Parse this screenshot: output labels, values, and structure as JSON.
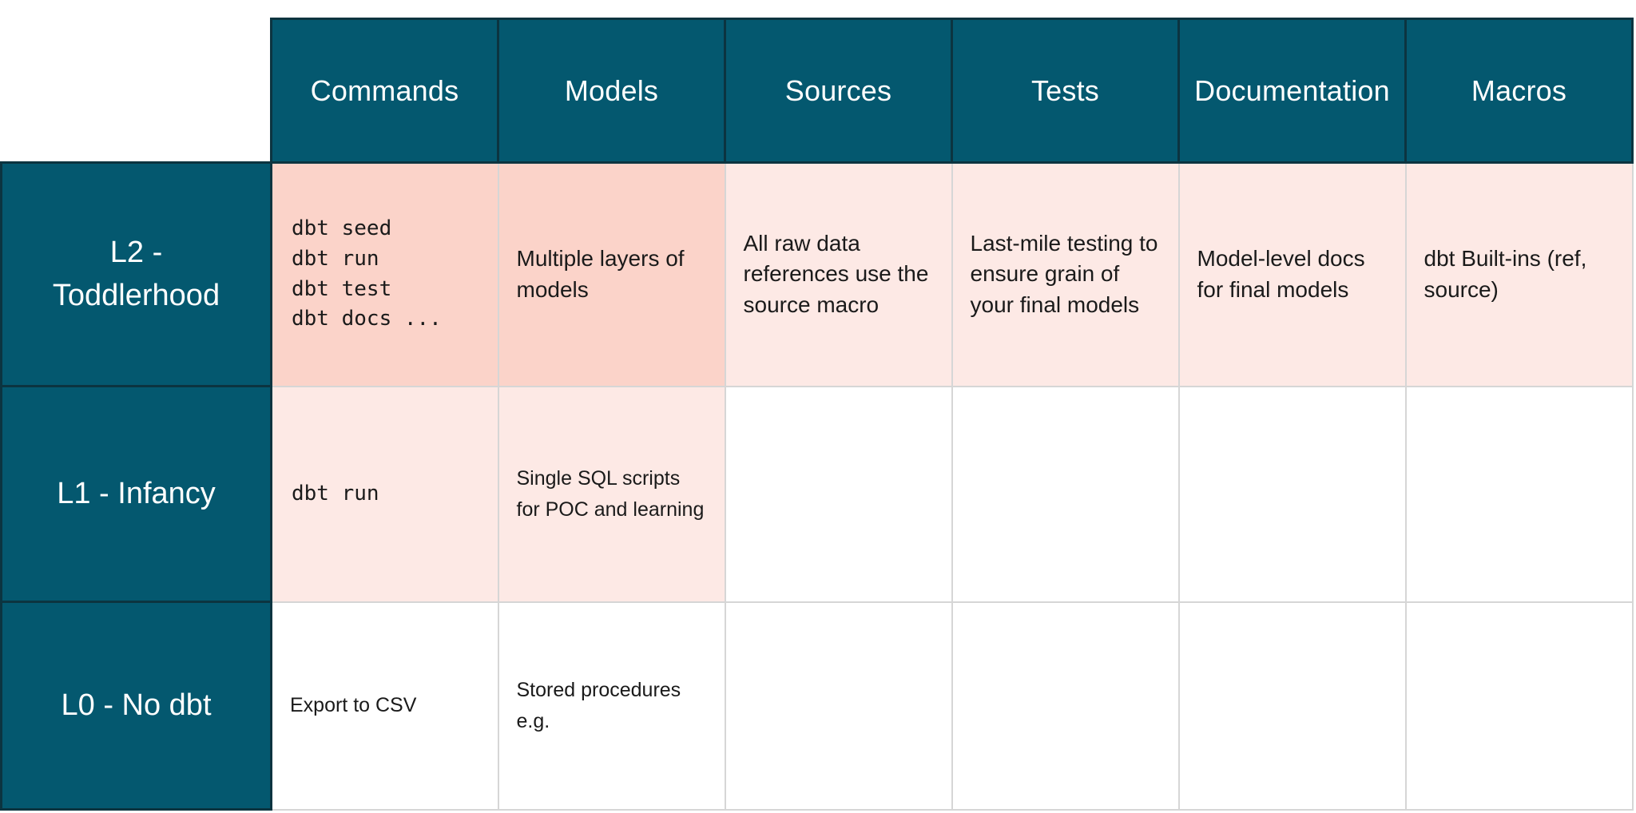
{
  "colors": {
    "header_teal": "#04586F",
    "header_border": "#0C3440",
    "cell_pink_strong": "#FBD3C9",
    "cell_pink_light": "#FDE9E5",
    "grid_line": "#D6D6D6",
    "header_text": "#FFFFFF",
    "body_text": "#1A1A1A",
    "page_background": "#FFFFFF"
  },
  "table": {
    "columns": [
      "Commands",
      "Models",
      "Sources",
      "Tests",
      "Documentation",
      "Macros"
    ],
    "rows": [
      {
        "label": "L2 - Toddlerhood",
        "cells": [
          {
            "text": "dbt seed\ndbt run\ndbt test\ndbt docs ..."
          },
          {
            "text": "Multiple layers of models"
          },
          {
            "text": "All raw data references use the source macro"
          },
          {
            "text": "Last-mile testing to ensure grain of your final models"
          },
          {
            "text": "Model-level docs for final models"
          },
          {
            "text": "dbt Built-ins (ref, source)"
          }
        ]
      },
      {
        "label": "L1 - Infancy",
        "cells": [
          {
            "text": "dbt run"
          },
          {
            "text": "Single SQL scripts for POC and learning"
          },
          {
            "text": ""
          },
          {
            "text": ""
          },
          {
            "text": ""
          },
          {
            "text": ""
          }
        ]
      },
      {
        "label": "L0 - No dbt",
        "cells": [
          {
            "text": "Export to CSV"
          },
          {
            "text": "Stored procedures e.g."
          },
          {
            "text": ""
          },
          {
            "text": ""
          },
          {
            "text": ""
          },
          {
            "text": ""
          }
        ]
      }
    ]
  }
}
